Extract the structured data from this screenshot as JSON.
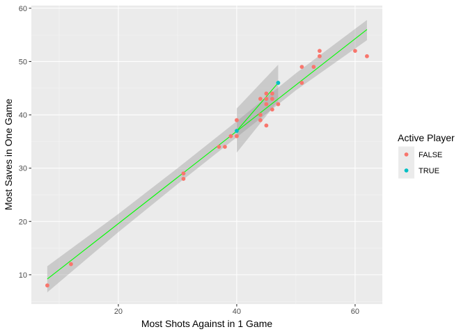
{
  "chart_data": {
    "type": "scatter",
    "xlabel": "Most Shots Against in 1 Game",
    "ylabel": "Most Saves in One Game",
    "xlim": [
      5.3,
      64.6
    ],
    "ylim": [
      4.5,
      60.5
    ],
    "x_ticks": [
      20,
      40,
      60
    ],
    "y_ticks": [
      10,
      20,
      30,
      40,
      50,
      60
    ],
    "grid": true,
    "legend": {
      "title": "Active Player",
      "position": "right",
      "entries": [
        {
          "label": "FALSE",
          "color": "#F8766D"
        },
        {
          "label": "TRUE",
          "color": "#00BFC4"
        }
      ]
    },
    "series": [
      {
        "name": "FALSE",
        "color": "#F8766D",
        "points": [
          [
            8,
            8
          ],
          [
            12,
            12
          ],
          [
            31,
            28
          ],
          [
            31,
            29
          ],
          [
            37,
            34
          ],
          [
            38,
            34
          ],
          [
            39,
            36
          ],
          [
            40,
            36
          ],
          [
            40,
            39
          ],
          [
            44,
            39
          ],
          [
            44,
            40
          ],
          [
            44,
            43
          ],
          [
            45,
            38
          ],
          [
            45,
            42
          ],
          [
            45,
            43
          ],
          [
            45,
            44
          ],
          [
            46,
            41
          ],
          [
            46,
            43
          ],
          [
            46,
            44
          ],
          [
            47,
            42
          ],
          [
            51,
            46
          ],
          [
            51,
            49
          ],
          [
            53,
            49
          ],
          [
            54,
            51
          ],
          [
            54,
            52
          ],
          [
            60,
            52
          ],
          [
            62,
            51
          ]
        ]
      },
      {
        "name": "TRUE",
        "color": "#00BFC4",
        "points": [
          [
            40,
            37
          ],
          [
            47,
            46
          ]
        ]
      }
    ],
    "fit_lines": [
      {
        "group": "all",
        "color": "#00FF00",
        "line": [
          [
            8,
            9.2
          ],
          [
            62,
            56
          ]
        ],
        "band": {
          "upper": [
            [
              8,
              11.6
            ],
            [
              20,
              21.4
            ],
            [
              30,
              30.0
            ],
            [
              40,
              38.8
            ],
            [
              50,
              47.8
            ],
            [
              62,
              57.8
            ]
          ],
          "lower": [
            [
              8,
              6.7
            ],
            [
              20,
              18.0
            ],
            [
              30,
              27.0
            ],
            [
              40,
              35.8
            ],
            [
              50,
              44.6
            ],
            [
              62,
              54.0
            ]
          ]
        }
      },
      {
        "group": "TRUE",
        "color": "#00FF00",
        "line": [
          [
            40,
            37
          ],
          [
            47,
            46
          ]
        ],
        "band": {
          "upper": [
            [
              40,
              41.2
            ],
            [
              47,
              49.4
            ]
          ],
          "lower": [
            [
              40,
              32.9
            ],
            [
              47,
              42.6
            ]
          ]
        }
      }
    ]
  }
}
